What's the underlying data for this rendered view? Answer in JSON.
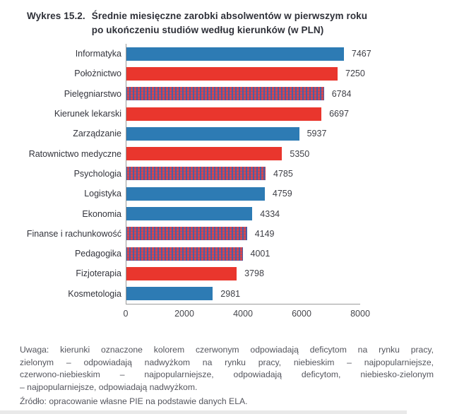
{
  "title": {
    "prefix": "Wykres 15.2.",
    "lines": [
      "Średnie miesięczne zarobki absolwentów w pierwszym roku",
      "po ukończeniu studiów według kierunków (w PLN)"
    ]
  },
  "chart_data": {
    "type": "bar",
    "orientation": "horizontal",
    "title": "Średnie miesięczne zarobki absolwentów w pierwszym roku po ukończeniu studiów według kierunków (w PLN)",
    "categories": [
      "Informatyka",
      "Położnictwo",
      "Pielęgniarstwo",
      "Kierunek lekarski",
      "Zarządzanie",
      "Ratownictwo medyczne",
      "Psychologia",
      "Logistyka",
      "Ekonomia",
      "Finanse i rachunkowość",
      "Pedagogika",
      "Fizjoterapia",
      "Kosmetologia"
    ],
    "values": [
      7467,
      7250,
      6784,
      6697,
      5937,
      5350,
      4785,
      4759,
      4334,
      4149,
      4001,
      3798,
      2981
    ],
    "bar_styles": [
      "blue",
      "red",
      "red-blue-pattern",
      "red",
      "blue",
      "red",
      "red-blue-pattern",
      "blue",
      "blue",
      "red-blue-pattern",
      "red-blue-pattern",
      "red",
      "blue"
    ],
    "x_ticks": [
      0,
      2000,
      4000,
      6000,
      8000
    ],
    "xlim": [
      0,
      8000
    ],
    "xlabel": "",
    "ylabel": "",
    "grid": false,
    "legend": "none",
    "colors": {
      "blue": "#2d7bb4",
      "red": "#e9362d",
      "pattern_base_red": "#d8444c",
      "pattern_stripe_blue": "#4a5ea6",
      "axis": "#9a9a9a"
    },
    "style_meaning": {
      "red": "odpowiadają deficytom na rynku pracy",
      "blue": "najpopularniejsze",
      "red-blue-pattern": "najpopularniejsze, odpowiadają deficytom"
    }
  },
  "note": {
    "lines": [
      "Uwaga: kierunki oznaczone kolorem czerwonym odpowiadają deficytom na rynku pracy,",
      "zielonym – odpowiadają nadwyżkom na rynku pracy, niebieskim – najpopularniejsze,",
      "czerwono-niebieskim – najpopularniejsze, odpowiadają deficytom, niebiesko-zielonym",
      "– najpopularniejsze, odpowiadają nadwyżkom."
    ],
    "source": "Źródło: opracowanie własne PIE na podstawie danych ELA."
  }
}
